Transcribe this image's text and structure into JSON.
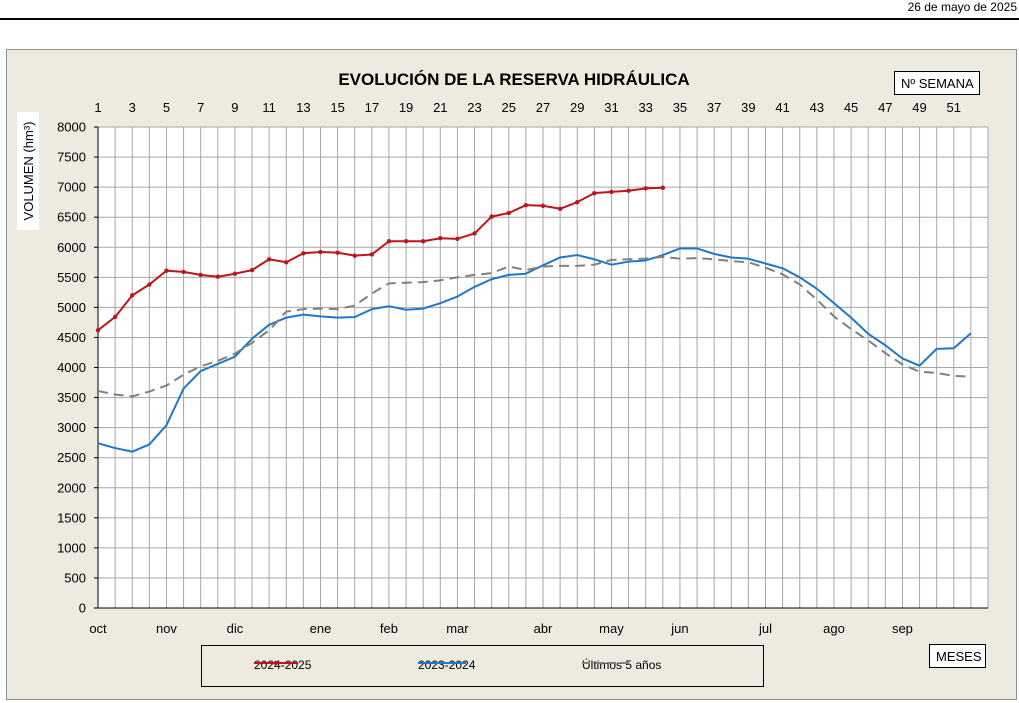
{
  "header": {
    "date": "26  de mayo de 2025"
  },
  "chart_data": {
    "type": "line",
    "title": "EVOLUCIÓN DE LA RESERVA HIDRÁULICA",
    "ylabel": "VOLUMEN (hm³)",
    "top_axis_label": "Nº SEMANA",
    "bottom_axis_label": "MESES",
    "ylim": [
      0,
      8000
    ],
    "yticks": [
      0,
      500,
      1000,
      1500,
      2000,
      2500,
      3000,
      3500,
      4000,
      4500,
      5000,
      5500,
      6000,
      6500,
      7000,
      7500,
      8000
    ],
    "xlim": [
      1,
      52
    ],
    "week_ticks": [
      1,
      3,
      5,
      7,
      9,
      11,
      13,
      15,
      17,
      19,
      21,
      23,
      25,
      27,
      29,
      31,
      33,
      35,
      37,
      39,
      41,
      43,
      45,
      47,
      49,
      51
    ],
    "months": [
      {
        "label": "oct",
        "week": 1
      },
      {
        "label": "nov",
        "week": 5
      },
      {
        "label": "dic",
        "week": 9
      },
      {
        "label": "ene",
        "week": 14
      },
      {
        "label": "feb",
        "week": 18
      },
      {
        "label": "mar",
        "week": 22
      },
      {
        "label": "abr",
        "week": 27
      },
      {
        "label": "may",
        "week": 31
      },
      {
        "label": "jun",
        "week": 35
      },
      {
        "label": "jul",
        "week": 40
      },
      {
        "label": "ago",
        "week": 44
      },
      {
        "label": "sep",
        "week": 48
      }
    ],
    "grid": true,
    "legend_position": "bottom",
    "series": [
      {
        "name": "2024-2025",
        "color": "#c0141c",
        "style": "solid-markers",
        "x": [
          1,
          2,
          3,
          4,
          5,
          6,
          7,
          8,
          9,
          10,
          11,
          12,
          13,
          14,
          15,
          16,
          17,
          18,
          19,
          20,
          21,
          22,
          23,
          24,
          25,
          26,
          27,
          28,
          29,
          30,
          31,
          32,
          33,
          34
        ],
        "values": [
          4620,
          4840,
          5200,
          5380,
          5610,
          5590,
          5540,
          5510,
          5560,
          5620,
          5800,
          5750,
          5900,
          5920,
          5910,
          5860,
          5880,
          6100,
          6100,
          6100,
          6150,
          6140,
          6230,
          6510,
          6570,
          6700,
          6690,
          6640,
          6750,
          6900,
          6920,
          6940,
          6980,
          6990
        ]
      },
      {
        "name": "2023-2024",
        "color": "#1f78c8",
        "style": "solid",
        "x": [
          1,
          2,
          3,
          4,
          5,
          6,
          7,
          8,
          9,
          10,
          11,
          12,
          13,
          14,
          15,
          16,
          17,
          18,
          19,
          20,
          21,
          22,
          23,
          24,
          25,
          26,
          27,
          28,
          29,
          30,
          31,
          32,
          33,
          34,
          35,
          36,
          37,
          38,
          39,
          40,
          41,
          42,
          43,
          44,
          45,
          46,
          47,
          48,
          49,
          50,
          51,
          52
        ],
        "values": [
          2740,
          2660,
          2600,
          2720,
          3040,
          3650,
          3940,
          4060,
          4180,
          4480,
          4710,
          4830,
          4880,
          4850,
          4830,
          4840,
          4970,
          5020,
          4960,
          4980,
          5070,
          5180,
          5340,
          5470,
          5540,
          5560,
          5700,
          5830,
          5870,
          5800,
          5710,
          5760,
          5780,
          5870,
          5980,
          5980,
          5890,
          5830,
          5810,
          5730,
          5650,
          5500,
          5310,
          5070,
          4830,
          4560,
          4370,
          4150,
          4030,
          4310,
          4320,
          4570
        ]
      },
      {
        "name": "Últimos 5 años",
        "color": "#808080",
        "style": "dashed",
        "x": [
          1,
          2,
          3,
          4,
          5,
          6,
          7,
          8,
          9,
          10,
          11,
          12,
          13,
          14,
          15,
          16,
          17,
          18,
          19,
          20,
          21,
          22,
          23,
          24,
          25,
          26,
          27,
          28,
          29,
          30,
          31,
          32,
          33,
          34,
          35,
          36,
          37,
          38,
          39,
          40,
          41,
          42,
          43,
          44,
          45,
          46,
          47,
          48,
          49,
          50,
          51,
          52
        ],
        "values": [
          3610,
          3550,
          3520,
          3600,
          3700,
          3880,
          4020,
          4110,
          4230,
          4410,
          4620,
          4930,
          4970,
          4980,
          4970,
          5030,
          5230,
          5400,
          5410,
          5420,
          5450,
          5500,
          5540,
          5570,
          5680,
          5620,
          5680,
          5690,
          5690,
          5710,
          5790,
          5800,
          5810,
          5840,
          5810,
          5820,
          5800,
          5770,
          5750,
          5660,
          5550,
          5380,
          5130,
          4850,
          4640,
          4450,
          4240,
          4050,
          3930,
          3910,
          3860,
          3850
        ]
      }
    ]
  }
}
